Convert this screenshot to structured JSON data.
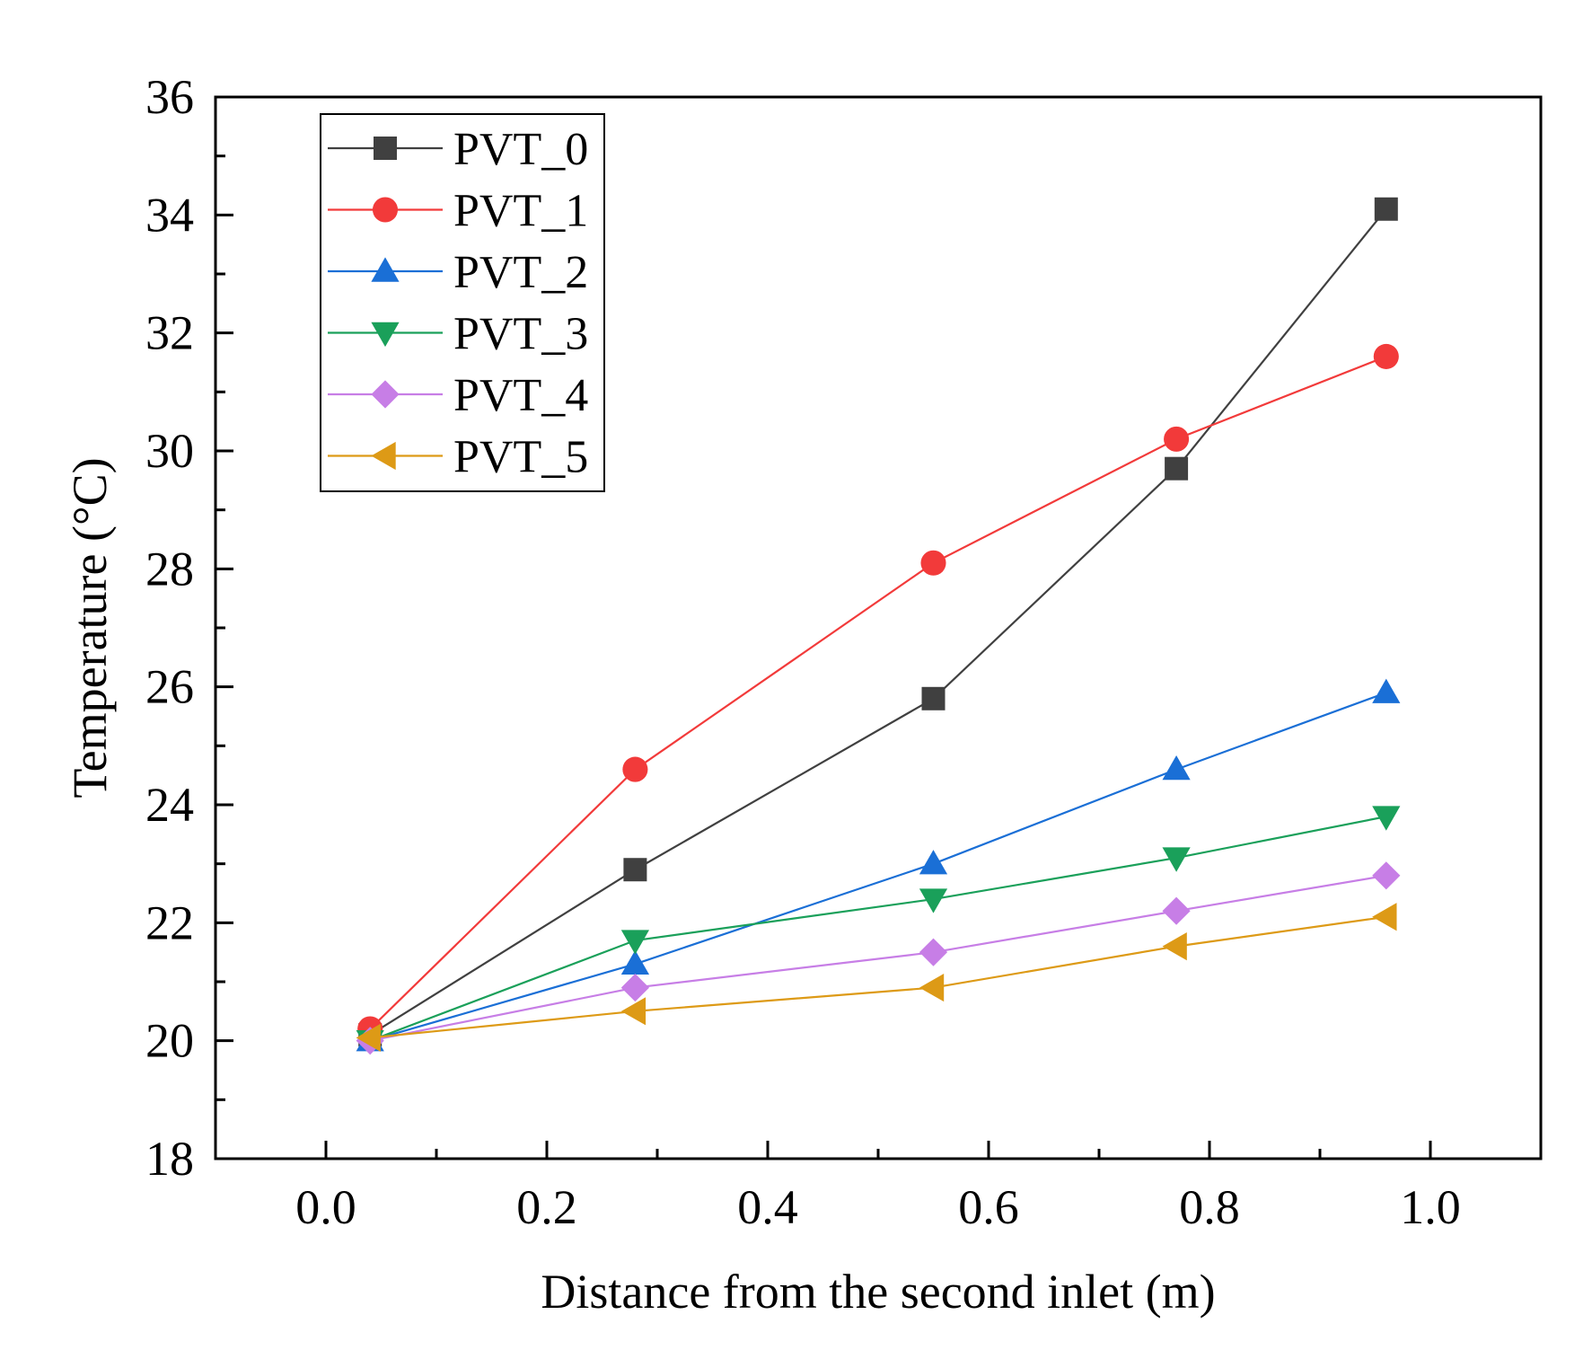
{
  "chart_data": {
    "type": "line",
    "title": "",
    "xlabel": "Distance from the second inlet (m)",
    "ylabel": "Temperature (°C)",
    "xlim": [
      -0.1,
      1.1
    ],
    "ylim": [
      18,
      36
    ],
    "x_major_ticks": [
      0.0,
      0.2,
      0.4,
      0.6,
      0.8,
      1.0
    ],
    "x_tick_labels": [
      "0.0",
      "0.2",
      "0.4",
      "0.6",
      "0.8",
      "1.0"
    ],
    "y_major_ticks": [
      18,
      20,
      22,
      24,
      26,
      28,
      30,
      32,
      34,
      36
    ],
    "y_tick_labels": [
      "18",
      "20",
      "22",
      "24",
      "26",
      "28",
      "30",
      "32",
      "34",
      "36"
    ],
    "grid": false,
    "legend_position": "top-left",
    "x": [
      0.04,
      0.28,
      0.55,
      0.77,
      0.96
    ],
    "series": [
      {
        "name": "PVT_0",
        "marker": "square",
        "color": "#404040",
        "values": [
          20.1,
          22.9,
          25.8,
          29.7,
          34.1
        ]
      },
      {
        "name": "PVT_1",
        "marker": "circle",
        "color": "#f23a3a",
        "values": [
          20.2,
          24.6,
          28.1,
          30.2,
          31.6
        ]
      },
      {
        "name": "PVT_2",
        "marker": "triangle-up",
        "color": "#1a6fd6",
        "values": [
          20.0,
          21.3,
          23.0,
          24.6,
          25.9
        ]
      },
      {
        "name": "PVT_3",
        "marker": "triangle-down",
        "color": "#1aa05a",
        "values": [
          20.0,
          21.7,
          22.4,
          23.1,
          23.8
        ]
      },
      {
        "name": "PVT_4",
        "marker": "diamond",
        "color": "#c77ee6",
        "values": [
          20.0,
          20.9,
          21.5,
          22.2,
          22.8
        ]
      },
      {
        "name": "PVT_5",
        "marker": "triangle-left",
        "color": "#dd9a16",
        "values": [
          20.05,
          20.5,
          20.9,
          21.6,
          22.1
        ]
      }
    ]
  }
}
